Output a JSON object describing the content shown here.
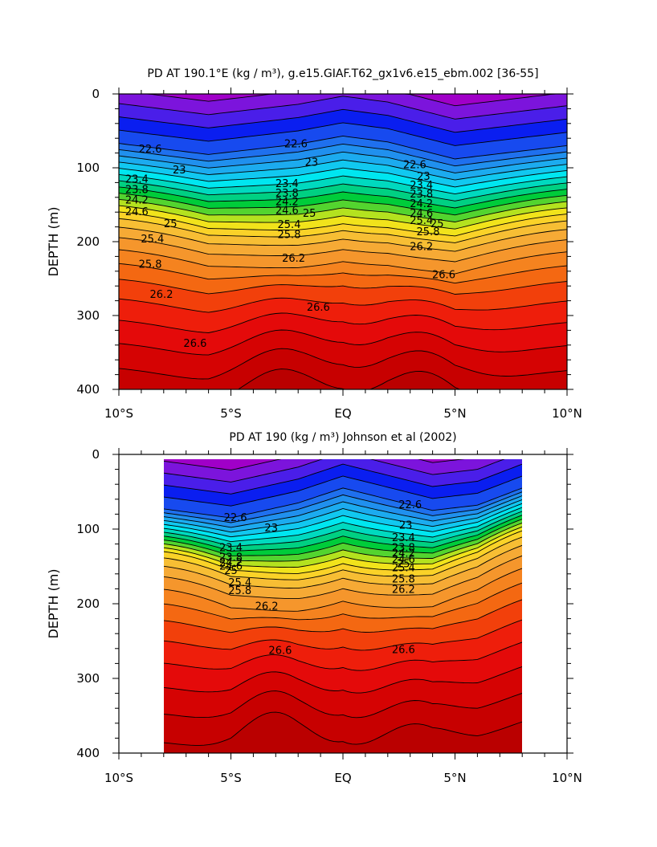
{
  "chart_data": [
    {
      "type": "contour",
      "title": "PD AT 190.1°E (kg / m³), g.e15.GIAF.T62_gx1v6.e15_ebm.002 [36-55]",
      "ylabel": "DEPTH (m)",
      "xlabel": "",
      "xlim": [
        -10,
        10
      ],
      "ylim": [
        400,
        0
      ],
      "xticks": [
        -10,
        -5,
        0,
        5,
        10
      ],
      "xticklabels": [
        "10°S",
        "5°S",
        "EQ",
        "5°N",
        "10°N"
      ],
      "yticks": [
        0,
        100,
        200,
        300,
        400
      ],
      "yticklabels": [
        "0",
        "100",
        "200",
        "300",
        "400"
      ],
      "data_extent_x": [
        -10,
        10
      ],
      "contour_interval": 0.2,
      "labeled_levels": [
        22.6,
        23,
        23.4,
        23.8,
        24.2,
        24.6,
        25,
        25.4,
        25.8,
        26.2,
        26.6
      ],
      "contour_labels": [
        {
          "text": "22.6",
          "x": -8.6,
          "y": 75
        },
        {
          "text": "22.6",
          "x": -2.1,
          "y": 68
        },
        {
          "text": "22.6",
          "x": 3.2,
          "y": 96
        },
        {
          "text": "23",
          "x": -7.3,
          "y": 103
        },
        {
          "text": "23",
          "x": -1.4,
          "y": 93
        },
        {
          "text": "23",
          "x": 3.6,
          "y": 112
        },
        {
          "text": "23.4",
          "x": -9.2,
          "y": 116
        },
        {
          "text": "23.4",
          "x": -2.5,
          "y": 122
        },
        {
          "text": "23.4",
          "x": 3.5,
          "y": 124
        },
        {
          "text": "23.8",
          "x": -9.2,
          "y": 130
        },
        {
          "text": "23.8",
          "x": -2.5,
          "y": 135
        },
        {
          "text": "23.8",
          "x": 3.5,
          "y": 136
        },
        {
          "text": "24.2",
          "x": -9.2,
          "y": 144
        },
        {
          "text": "24.2",
          "x": -2.5,
          "y": 146
        },
        {
          "text": "24.2",
          "x": 3.5,
          "y": 149
        },
        {
          "text": "24.6",
          "x": -9.2,
          "y": 160
        },
        {
          "text": "24.6",
          "x": -2.5,
          "y": 158
        },
        {
          "text": "24.6",
          "x": 3.5,
          "y": 162
        },
        {
          "text": "25",
          "x": -7.7,
          "y": 176
        },
        {
          "text": "25",
          "x": -1.5,
          "y": 162
        },
        {
          "text": "25",
          "x": 4.2,
          "y": 176
        },
        {
          "text": "25.4",
          "x": -8.5,
          "y": 197
        },
        {
          "text": "25.4",
          "x": -2.4,
          "y": 177
        },
        {
          "text": "25.4",
          "x": 3.5,
          "y": 172
        },
        {
          "text": "25.8",
          "x": -8.6,
          "y": 231
        },
        {
          "text": "25.8",
          "x": -2.4,
          "y": 191
        },
        {
          "text": "25.8",
          "x": 3.8,
          "y": 187
        },
        {
          "text": "26.2",
          "x": -8.1,
          "y": 272
        },
        {
          "text": "26.2",
          "x": -2.2,
          "y": 223
        },
        {
          "text": "26.2",
          "x": 3.5,
          "y": 207
        },
        {
          "text": "26.6",
          "x": -6.6,
          "y": 338
        },
        {
          "text": "26.6",
          "x": -1.1,
          "y": 289
        },
        {
          "text": "26.6",
          "x": 4.5,
          "y": 245
        }
      ]
    },
    {
      "type": "contour",
      "title": "PD AT 190 (kg / m³) Johnson et al (2002)",
      "ylabel": "DEPTH (m)",
      "xlabel": "",
      "xlim": [
        -10,
        10
      ],
      "ylim": [
        400,
        0
      ],
      "xticks": [
        -10,
        -5,
        0,
        5,
        10
      ],
      "xticklabels": [
        "10°S",
        "5°S",
        "EQ",
        "5°N",
        "10°N"
      ],
      "yticks": [
        0,
        100,
        200,
        300,
        400
      ],
      "yticklabels": [
        "0",
        "100",
        "200",
        "300",
        "400"
      ],
      "data_extent_x": [
        -8,
        8
      ],
      "contour_interval": 0.2,
      "labeled_levels": [
        22.6,
        23,
        23.4,
        23.8,
        24.2,
        24.6,
        25,
        25.4,
        25.8,
        26.2,
        26.6
      ],
      "contour_labels": [
        {
          "text": "22.6",
          "x": -4.8,
          "y": 85
        },
        {
          "text": "22.6",
          "x": 3.0,
          "y": 68
        },
        {
          "text": "23",
          "x": -3.2,
          "y": 99
        },
        {
          "text": "23",
          "x": 2.8,
          "y": 95
        },
        {
          "text": "23.4",
          "x": -5.0,
          "y": 125
        },
        {
          "text": "23.4",
          "x": 2.7,
          "y": 112
        },
        {
          "text": "23.8",
          "x": -5.0,
          "y": 138
        },
        {
          "text": "23.8",
          "x": 2.7,
          "y": 125
        },
        {
          "text": "24.2",
          "x": -5.0,
          "y": 145
        },
        {
          "text": "24.2",
          "x": 2.7,
          "y": 133
        },
        {
          "text": "24.6",
          "x": -5.0,
          "y": 150
        },
        {
          "text": "24.6",
          "x": 2.7,
          "y": 141
        },
        {
          "text": "25",
          "x": -5.0,
          "y": 156
        },
        {
          "text": "25",
          "x": 2.7,
          "y": 147
        },
        {
          "text": "25.4",
          "x": -4.6,
          "y": 172
        },
        {
          "text": "25.4",
          "x": 2.7,
          "y": 152
        },
        {
          "text": "25.8",
          "x": -4.6,
          "y": 183
        },
        {
          "text": "25.8",
          "x": 2.7,
          "y": 167
        },
        {
          "text": "26.2",
          "x": -3.4,
          "y": 204
        },
        {
          "text": "26.2",
          "x": 2.7,
          "y": 181
        },
        {
          "text": "26.6",
          "x": -2.8,
          "y": 263
        },
        {
          "text": "26.6",
          "x": 2.7,
          "y": 262
        }
      ]
    }
  ]
}
